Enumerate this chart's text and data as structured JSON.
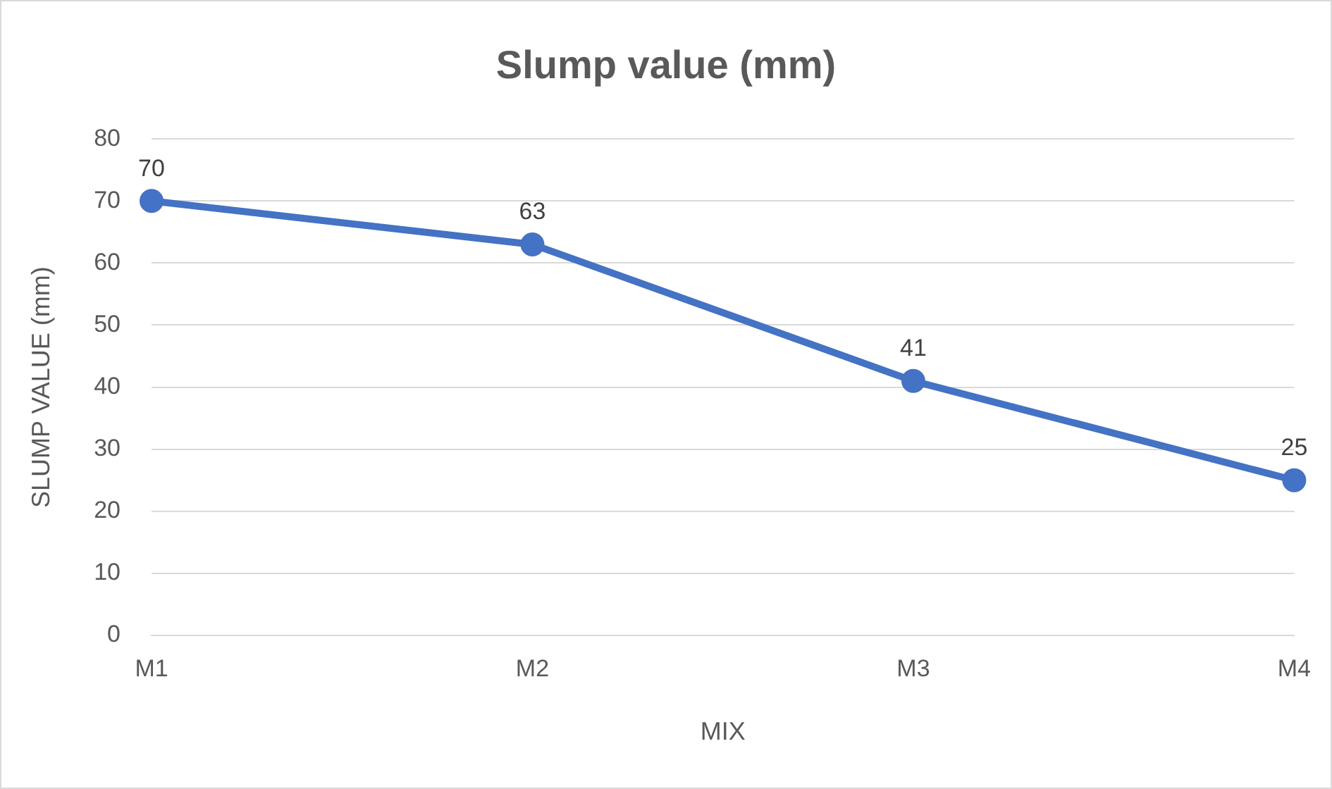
{
  "chart_data": {
    "type": "line",
    "title": "Slump value (mm)",
    "xlabel": "MIX",
    "ylabel": "SLUMP VALUE (mm)",
    "categories": [
      "M1",
      "M2",
      "M3",
      "M4"
    ],
    "series": [
      {
        "color": "#4472c4",
        "values": [
          70,
          63,
          41,
          25
        ]
      }
    ],
    "ylim": [
      0,
      80
    ],
    "yticks": [
      0,
      10,
      20,
      30,
      40,
      50,
      60,
      70,
      80
    ],
    "grid": "y",
    "legend": false,
    "marker": "circle",
    "line_style": "solid",
    "data_labels": true
  }
}
